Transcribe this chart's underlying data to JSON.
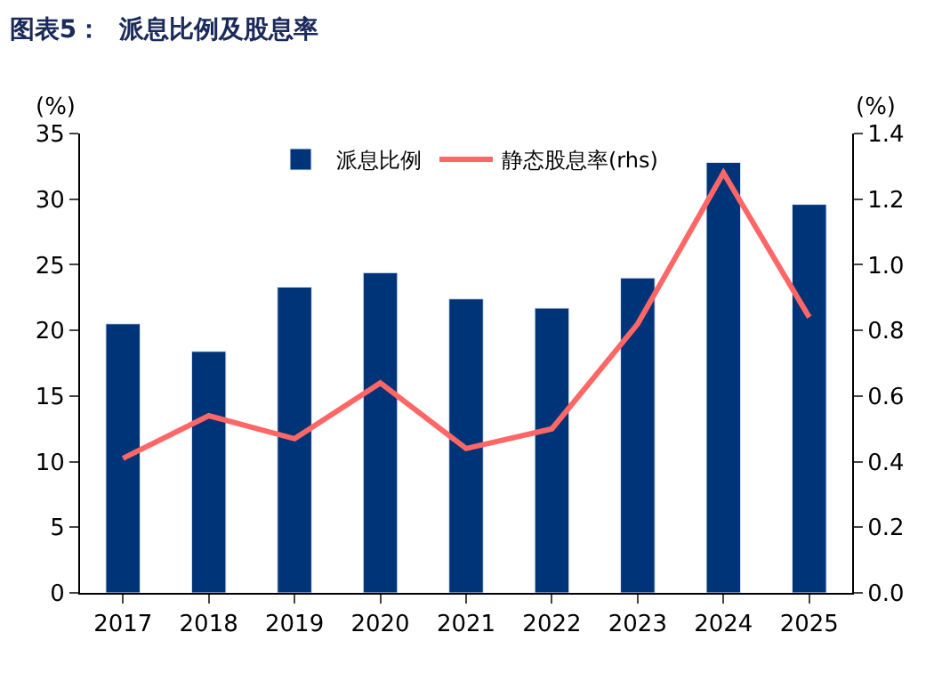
{
  "chart_data": {
    "type": "bar",
    "title": "图表5：  派息比例及股息率",
    "ylabel": "(%)",
    "y2label": "(%)",
    "categories": [
      "2017",
      "2018",
      "2019",
      "2020",
      "2021",
      "2022",
      "2023",
      "2024",
      "2025"
    ],
    "series": [
      {
        "name": "派息比例",
        "color": "#003478",
        "values": [
          20.5,
          18.4,
          23.3,
          24.4,
          22.4,
          21.7,
          24.0,
          32.8,
          29.6
        ]
      },
      {
        "name": "静态股息率(rhs)",
        "type": "line",
        "axis": "y2",
        "color": "#ff6666",
        "marker": "none",
        "values": [
          0.41,
          0.54,
          0.47,
          0.64,
          0.44,
          0.5,
          0.82,
          1.28,
          0.84
        ]
      }
    ],
    "ylim": [
      0,
      35
    ],
    "yticks": [
      0,
      5,
      10,
      15,
      20,
      25,
      30,
      35
    ],
    "y2lim": [
      0,
      1.4
    ],
    "y2ticks": [
      {
        "value": 0,
        "label": "0.0"
      },
      {
        "value": 0.2,
        "label": "0.2"
      },
      {
        "value": 0.4,
        "label": "0.4"
      },
      {
        "value": 0.6,
        "label": "0.6"
      },
      {
        "value": 0.8,
        "label": "0.8"
      },
      {
        "value": 1.0,
        "label": "1.0"
      },
      {
        "value": 1.2,
        "label": "1.2"
      },
      {
        "value": 1.4,
        "label": "1.4"
      }
    ],
    "legend": "top"
  }
}
